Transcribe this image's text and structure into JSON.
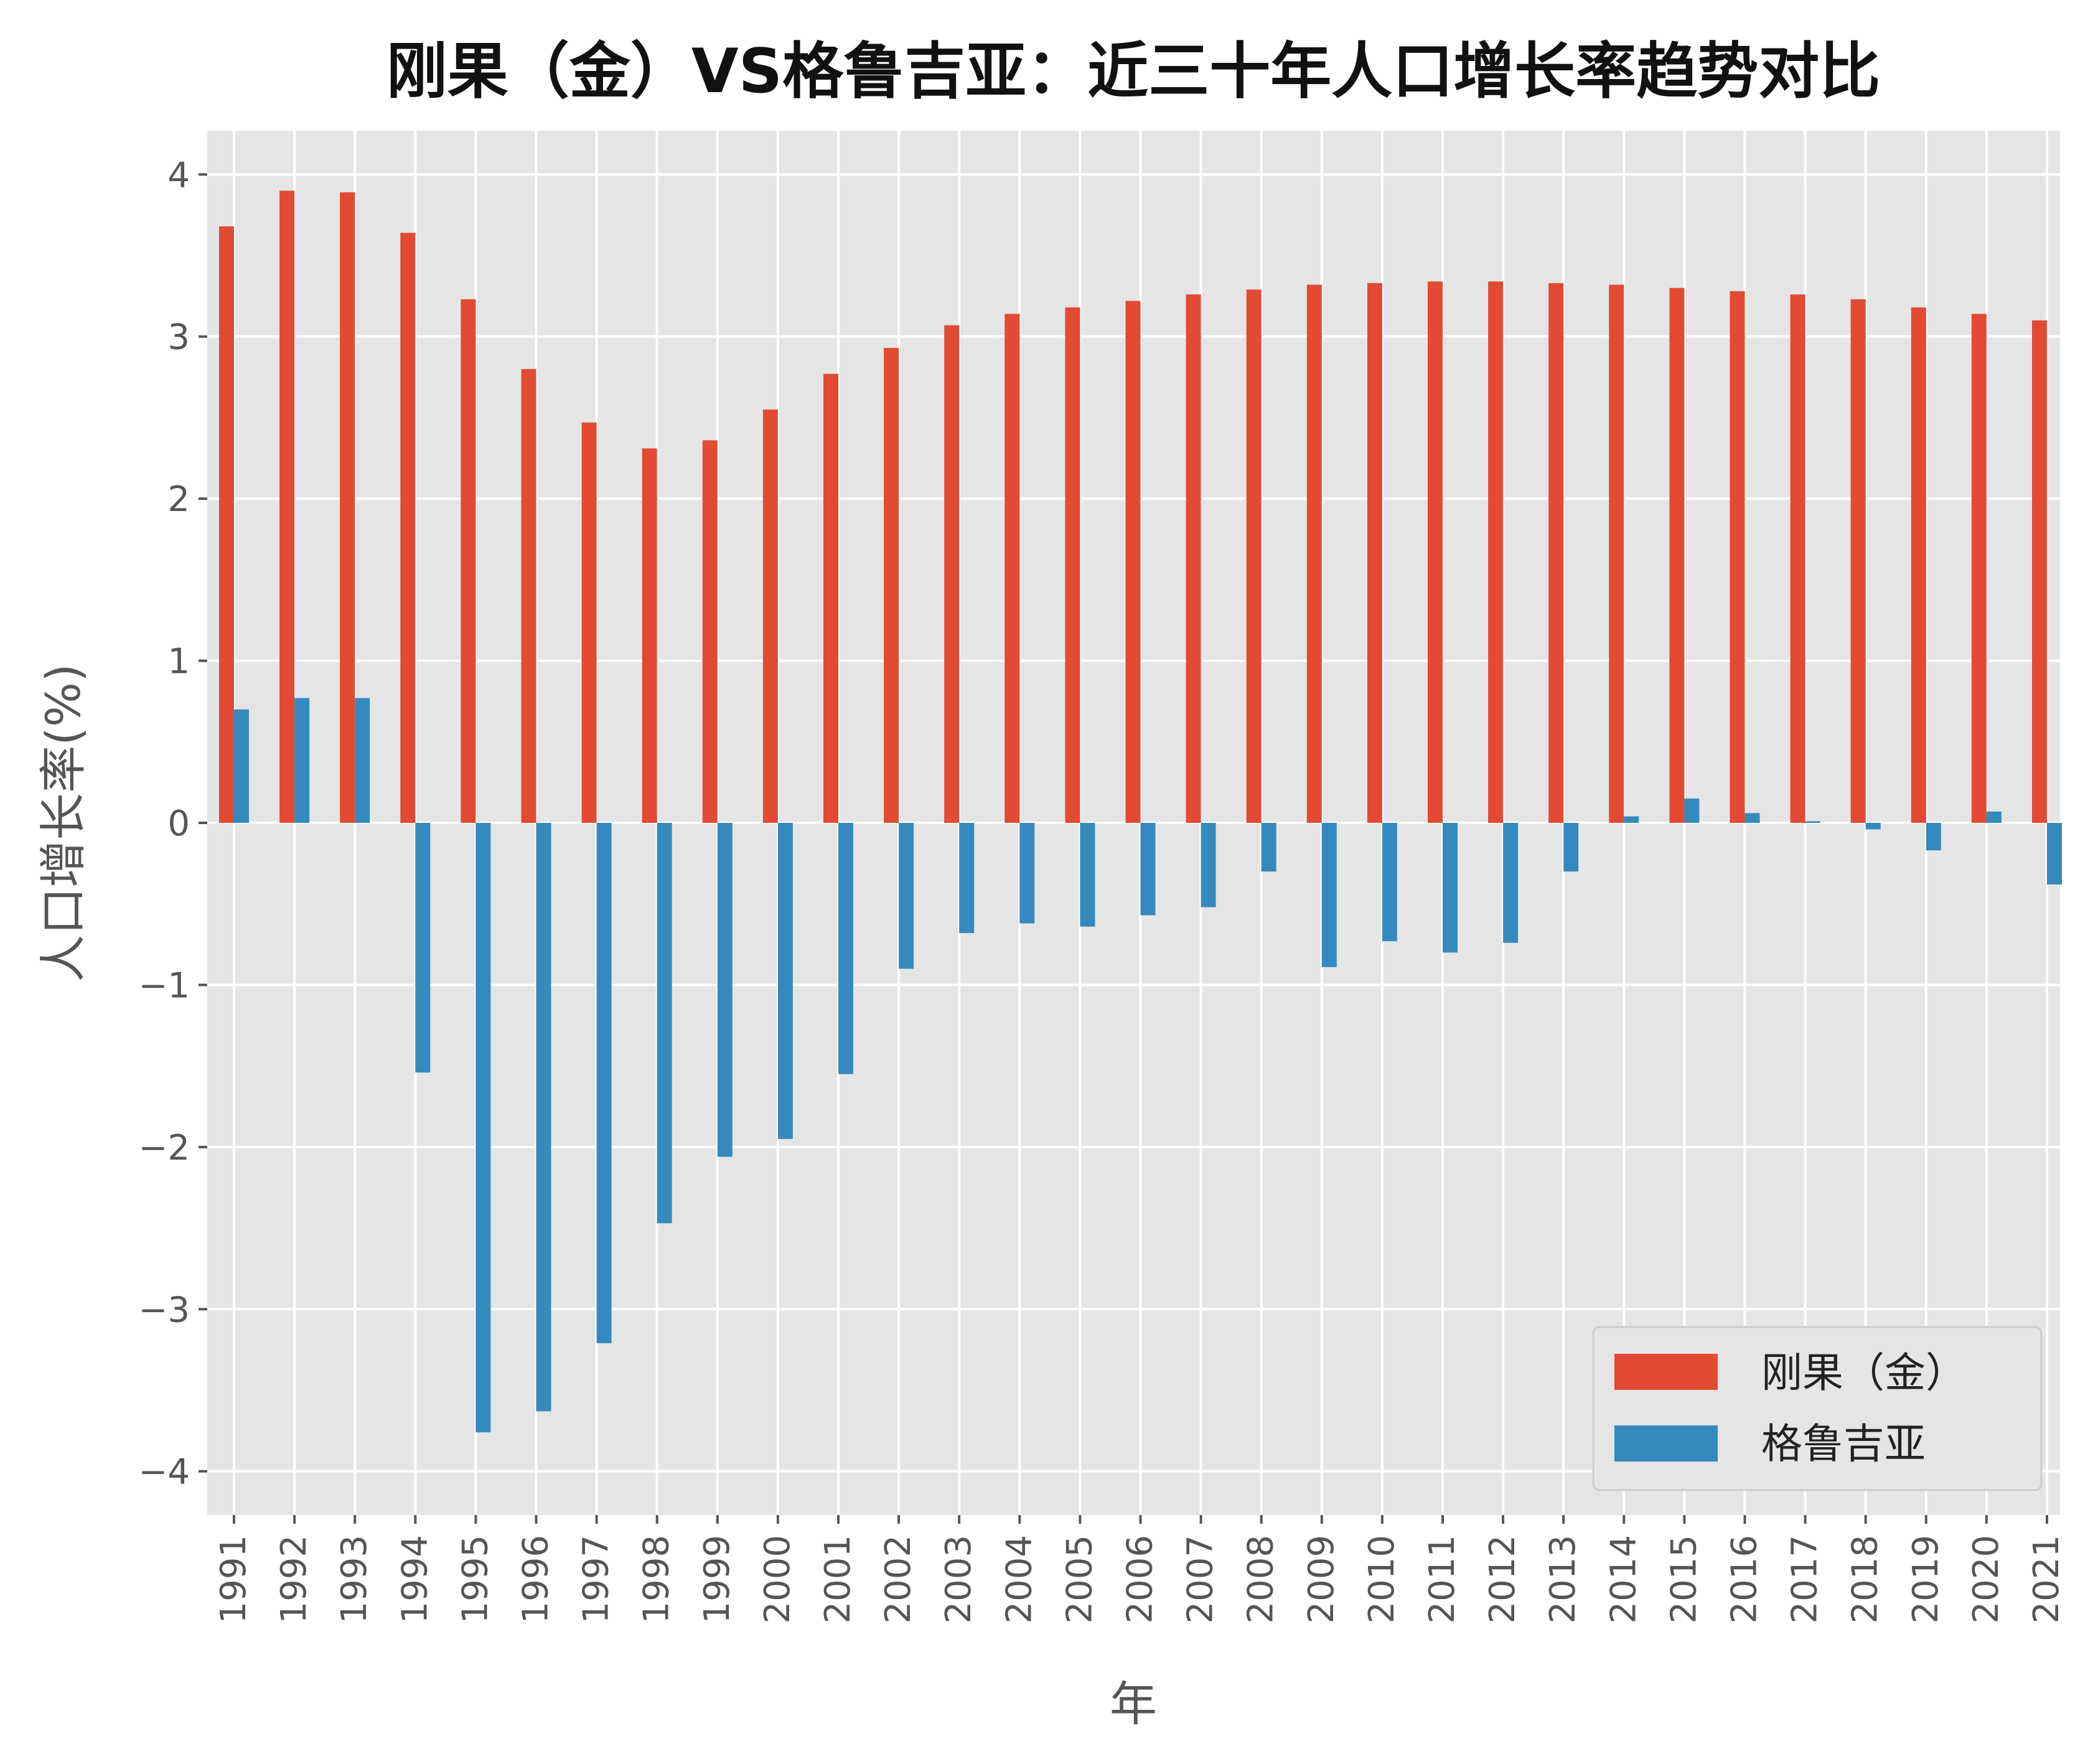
{
  "chart_data": {
    "type": "bar",
    "title": "刚果（金）VS格鲁吉亚：近三十年人口增长率趋势对比",
    "xlabel": "年",
    "ylabel": "人口增长率(%)",
    "ylim": [
      -4.27,
      4.27
    ],
    "yticks": [
      4,
      3,
      2,
      1,
      0,
      -1,
      -2,
      -3,
      -4
    ],
    "ytick_labels": [
      "4",
      "3",
      "2",
      "1",
      "0",
      "−1",
      "−2",
      "−3",
      "−4"
    ],
    "grid": true,
    "legend_position": "lower-right",
    "categories": [
      "1991",
      "1992",
      "1993",
      "1994",
      "1995",
      "1996",
      "1997",
      "1998",
      "1999",
      "2000",
      "2001",
      "2002",
      "2003",
      "2004",
      "2005",
      "2006",
      "2007",
      "2008",
      "2009",
      "2010",
      "2011",
      "2012",
      "2013",
      "2014",
      "2015",
      "2016",
      "2017",
      "2018",
      "2019",
      "2020",
      "2021"
    ],
    "series": [
      {
        "name": "刚果（金）",
        "color": "#e24a33",
        "values": [
          3.68,
          3.9,
          3.89,
          3.64,
          3.23,
          2.8,
          2.47,
          2.31,
          2.36,
          2.55,
          2.77,
          2.93,
          3.07,
          3.14,
          3.18,
          3.22,
          3.26,
          3.29,
          3.32,
          3.33,
          3.34,
          3.34,
          3.33,
          3.32,
          3.3,
          3.28,
          3.26,
          3.23,
          3.18,
          3.14,
          3.1
        ]
      },
      {
        "name": "格鲁吉亚",
        "color": "#348abd",
        "values": [
          0.7,
          0.77,
          0.77,
          -1.54,
          -3.76,
          -3.63,
          -3.21,
          -2.47,
          -2.06,
          -1.95,
          -1.55,
          -0.9,
          -0.68,
          -0.62,
          -0.64,
          -0.57,
          -0.52,
          -0.3,
          -0.89,
          -0.73,
          -0.8,
          -0.74,
          -0.3,
          0.04,
          0.15,
          0.06,
          0.01,
          -0.04,
          -0.17,
          0.07,
          -0.38
        ]
      }
    ]
  }
}
